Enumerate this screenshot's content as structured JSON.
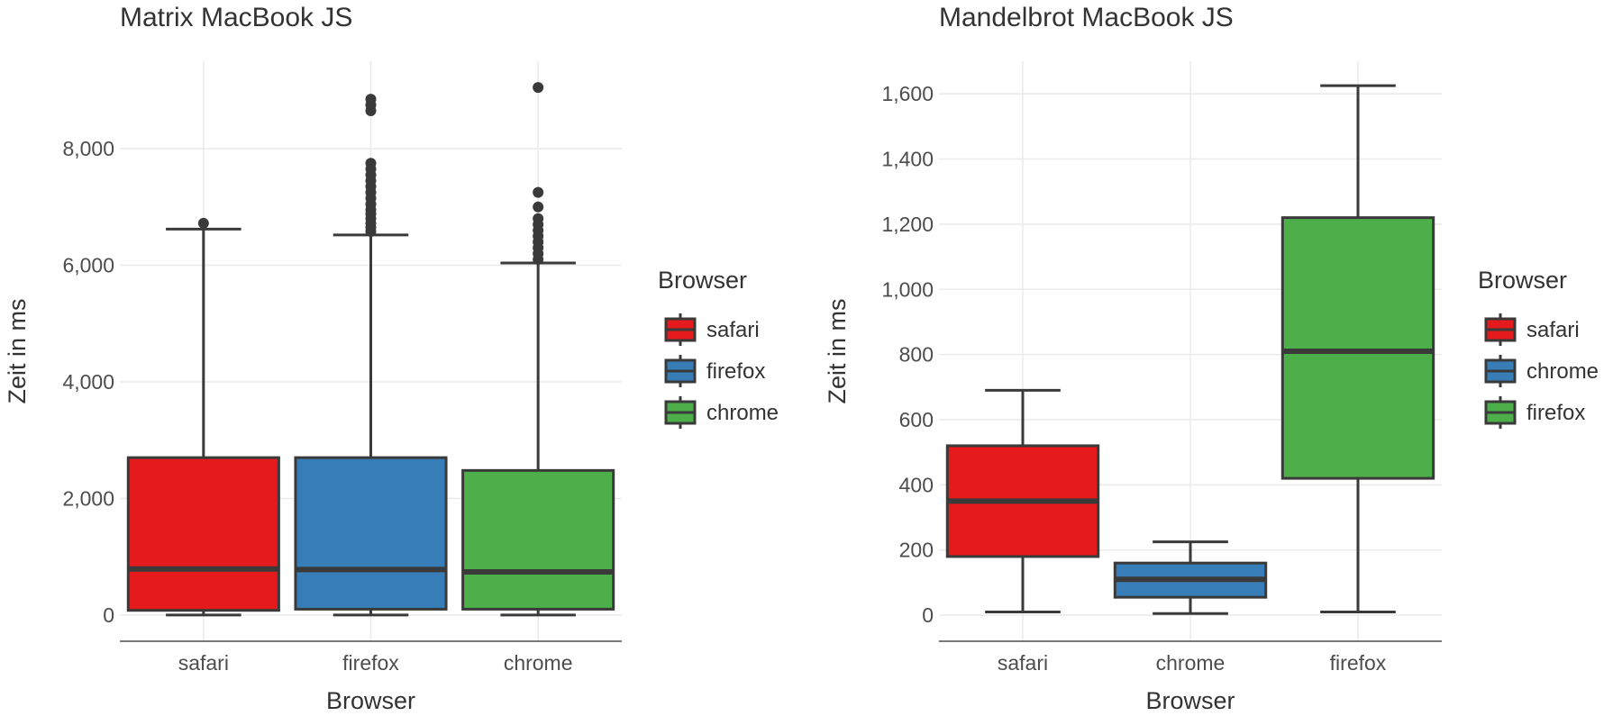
{
  "chart_data": [
    {
      "type": "boxplot",
      "title": "Matrix MacBook JS",
      "xlabel": "Browser",
      "ylabel": "Zeit in ms",
      "ylim": [
        -450,
        9500
      ],
      "yticks": [
        0,
        2000,
        4000,
        6000,
        8000
      ],
      "ytick_labels": [
        "0",
        "2,000",
        "4,000",
        "6,000",
        "8,000"
      ],
      "grid": true,
      "legend": {
        "title": "Browser",
        "placement": "right",
        "entries": [
          {
            "label": "safari",
            "color": "#E41A1C"
          },
          {
            "label": "firefox",
            "color": "#377EB8"
          },
          {
            "label": "chrome",
            "color": "#4DAF4A"
          }
        ]
      },
      "categories": [
        "safari",
        "firefox",
        "chrome"
      ],
      "boxes": [
        {
          "name": "safari",
          "color": "#E41A1C",
          "whisker_low": 0,
          "q1": 80,
          "median": 790,
          "q3": 2700,
          "whisker_high": 6620,
          "outliers": [
            6720
          ]
        },
        {
          "name": "firefox",
          "color": "#377EB8",
          "whisker_low": 0,
          "q1": 100,
          "median": 780,
          "q3": 2700,
          "whisker_high": 6520,
          "outliers": [
            6580,
            6650,
            6720,
            6800,
            6880,
            6950,
            7050,
            7150,
            7250,
            7350,
            7450,
            7550,
            7650,
            7750,
            8650,
            8750,
            8850
          ]
        },
        {
          "name": "chrome",
          "color": "#4DAF4A",
          "whisker_low": 0,
          "q1": 100,
          "median": 740,
          "q3": 2480,
          "whisker_high": 6040,
          "outliers": [
            6100,
            6200,
            6300,
            6400,
            6500,
            6600,
            6700,
            6800,
            7000,
            7250,
            9050
          ]
        }
      ]
    },
    {
      "type": "boxplot",
      "title": "Mandelbrot MacBook JS",
      "xlabel": "Browser",
      "ylabel": "Zeit in ms",
      "ylim": [
        -80,
        1700
      ],
      "yticks": [
        0,
        200,
        400,
        600,
        800,
        1000,
        1200,
        1400,
        1600
      ],
      "ytick_labels": [
        "0",
        "200",
        "400",
        "600",
        "800",
        "1,000",
        "1,200",
        "1,400",
        "1,600"
      ],
      "grid": true,
      "legend": {
        "title": "Browser",
        "placement": "right",
        "entries": [
          {
            "label": "safari",
            "color": "#E41A1C"
          },
          {
            "label": "chrome",
            "color": "#377EB8"
          },
          {
            "label": "firefox",
            "color": "#4DAF4A"
          }
        ]
      },
      "categories": [
        "safari",
        "chrome",
        "firefox"
      ],
      "boxes": [
        {
          "name": "safari",
          "color": "#E41A1C",
          "whisker_low": 10,
          "q1": 180,
          "median": 350,
          "q3": 520,
          "whisker_high": 690,
          "outliers": []
        },
        {
          "name": "chrome",
          "color": "#377EB8",
          "whisker_low": 5,
          "q1": 55,
          "median": 110,
          "q3": 160,
          "whisker_high": 225,
          "outliers": []
        },
        {
          "name": "firefox",
          "color": "#4DAF4A",
          "whisker_low": 10,
          "q1": 420,
          "median": 810,
          "q3": 1220,
          "whisker_high": 1625,
          "outliers": []
        }
      ]
    }
  ]
}
